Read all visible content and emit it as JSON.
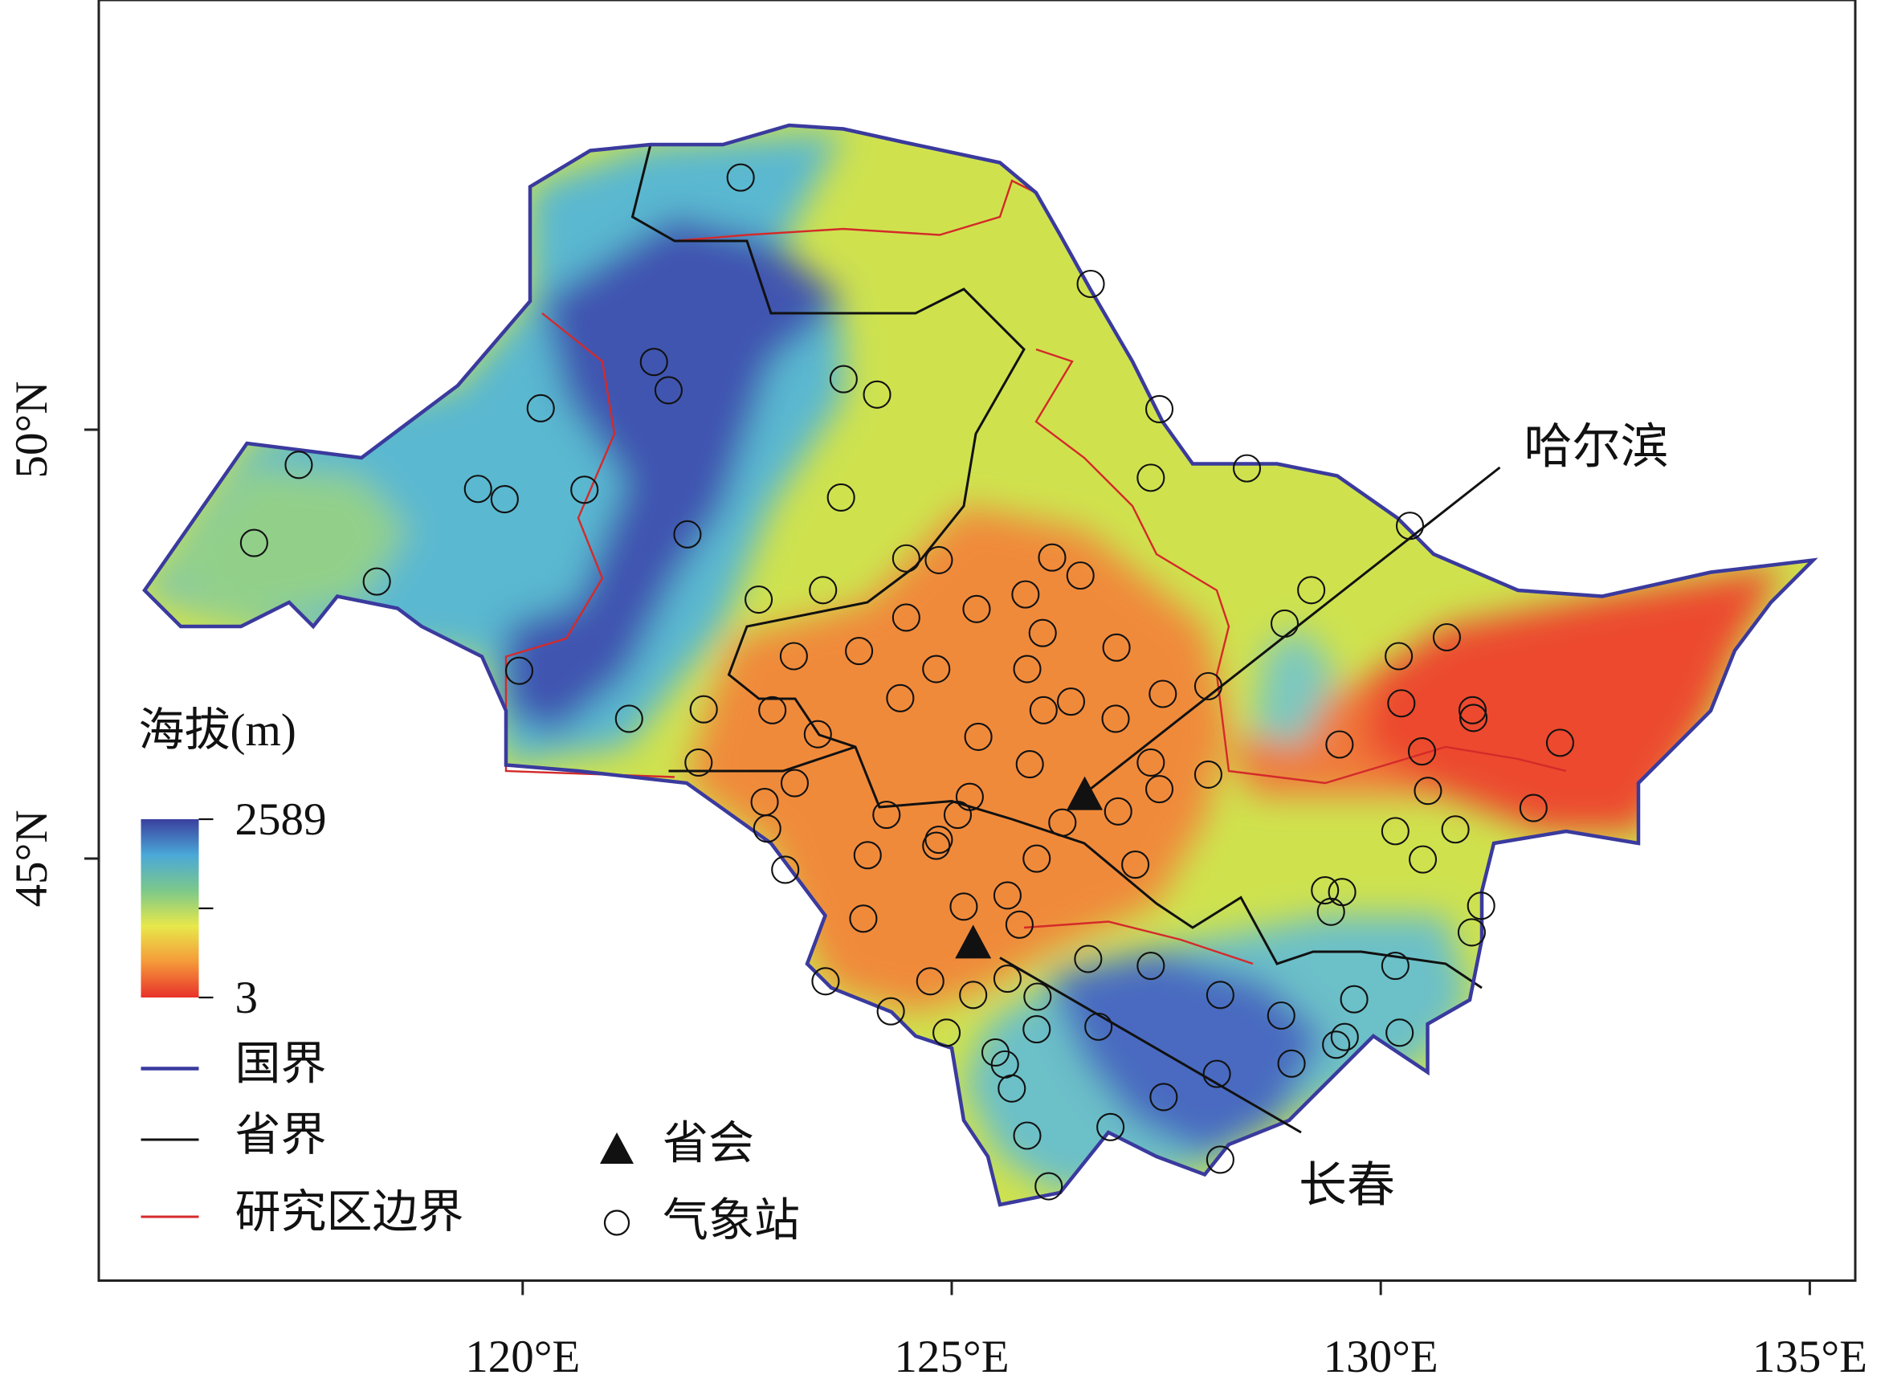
{
  "map": {
    "xlim": [
      115.06,
      135.53
    ],
    "ylim": [
      40.08,
      55.01
    ],
    "xticks": [
      {
        "value": 120,
        "label": "120°E"
      },
      {
        "value": 125,
        "label": "125°E"
      },
      {
        "value": 130,
        "label": "130°E"
      },
      {
        "value": 135,
        "label": "135°E"
      }
    ],
    "yticks": [
      {
        "value": 45,
        "label": "45°N"
      },
      {
        "value": 50,
        "label": "50°N"
      }
    ],
    "elevation_legend": {
      "title": "海拔(m)",
      "max": 2589,
      "min": 3
    },
    "legend": {
      "national_border": "国界",
      "provincial_border": "省界",
      "study_area": "研究区边界",
      "capital": "省会",
      "station": "气象站"
    },
    "capitals": [
      {
        "name": "哈尔滨",
        "lon": 126.55,
        "lat": 45.72
      },
      {
        "name": "长春",
        "lon": 125.25,
        "lat": 43.99
      }
    ],
    "stations": {
      "lon": [
        122.54,
        126.62,
        127.42,
        128.44,
        127.32,
        130.34,
        117.39,
        116.87,
        118.3,
        119.48,
        119.79,
        120.21,
        120.72,
        121.53,
        121.7,
        121.92,
        119.96,
        121.24,
        123.74,
        124.13,
        123.71,
        122.75,
        123.5,
        123.16,
        123.92,
        124.47,
        124.85,
        124.47,
        125.29,
        126.17,
        126.5,
        125.86,
        126.06,
        124.82,
        124.4,
        125.88,
        126.92,
        126.39,
        126.07,
        126.91,
        127.46,
        127.99,
        125.31,
        125.91,
        123.44,
        122.91,
        122.11,
        122.05,
        122.82,
        123.17,
        122.85,
        123.06,
        124.02,
        124.24,
        124.85,
        124.82,
        125.21,
        125.07,
        125.99,
        126.29,
        126.94,
        127.14,
        127.32,
        127.42,
        127.99,
        128.88,
        129.19,
        130.21,
        130.77,
        130.24,
        131.07,
        131.08,
        129.52,
        130.48,
        132.09,
        130.55,
        131.78,
        130.17,
        130.87,
        130.49,
        129.35,
        129.55,
        129.42,
        131.17,
        131.06,
        123.97,
        125.14,
        125.65,
        125.79,
        124.75,
        125.25,
        125.65,
        126.0,
        126.59,
        127.32,
        124.29,
        124.94,
        125.99,
        126.71,
        128.13,
        128.84,
        129.69,
        130.17,
        129.58,
        129.48,
        130.22,
        125.51,
        125.62,
        125.7,
        128.09,
        128.96,
        127.47,
        126.85,
        125.88,
        128.13,
        126.13,
        123.53
      ],
      "lat": [
        52.94,
        51.7,
        50.24,
        49.55,
        49.44,
        48.88,
        49.59,
        48.68,
        48.23,
        49.31,
        49.19,
        50.25,
        49.3,
        50.79,
        50.46,
        48.78,
        47.19,
        46.63,
        50.59,
        50.41,
        49.21,
        48.02,
        48.13,
        47.36,
        47.42,
        48.5,
        48.48,
        47.81,
        47.91,
        48.51,
        48.3,
        48.08,
        47.63,
        47.21,
        46.87,
        47.21,
        47.46,
        46.83,
        46.73,
        46.63,
        46.92,
        47.01,
        46.42,
        46.1,
        46.45,
        46.73,
        46.74,
        46.12,
        45.66,
        45.88,
        45.35,
        44.87,
        45.04,
        45.51,
        45.22,
        45.15,
        45.72,
        45.51,
        45.0,
        45.42,
        45.55,
        44.93,
        46.12,
        45.81,
        45.98,
        47.74,
        48.13,
        47.36,
        47.58,
        46.81,
        46.73,
        46.64,
        46.33,
        46.25,
        46.35,
        45.79,
        45.59,
        45.32,
        45.34,
        44.99,
        44.63,
        44.61,
        44.38,
        44.45,
        44.14,
        44.3,
        44.44,
        44.57,
        44.23,
        43.57,
        43.41,
        43.6,
        43.39,
        43.83,
        43.75,
        43.22,
        42.97,
        43.01,
        43.04,
        43.41,
        43.17,
        43.36,
        43.75,
        42.92,
        42.83,
        42.97,
        42.74,
        42.6,
        42.32,
        42.49,
        42.61,
        42.22,
        41.87,
        41.77,
        41.49,
        41.18,
        43.57
      ]
    }
  }
}
